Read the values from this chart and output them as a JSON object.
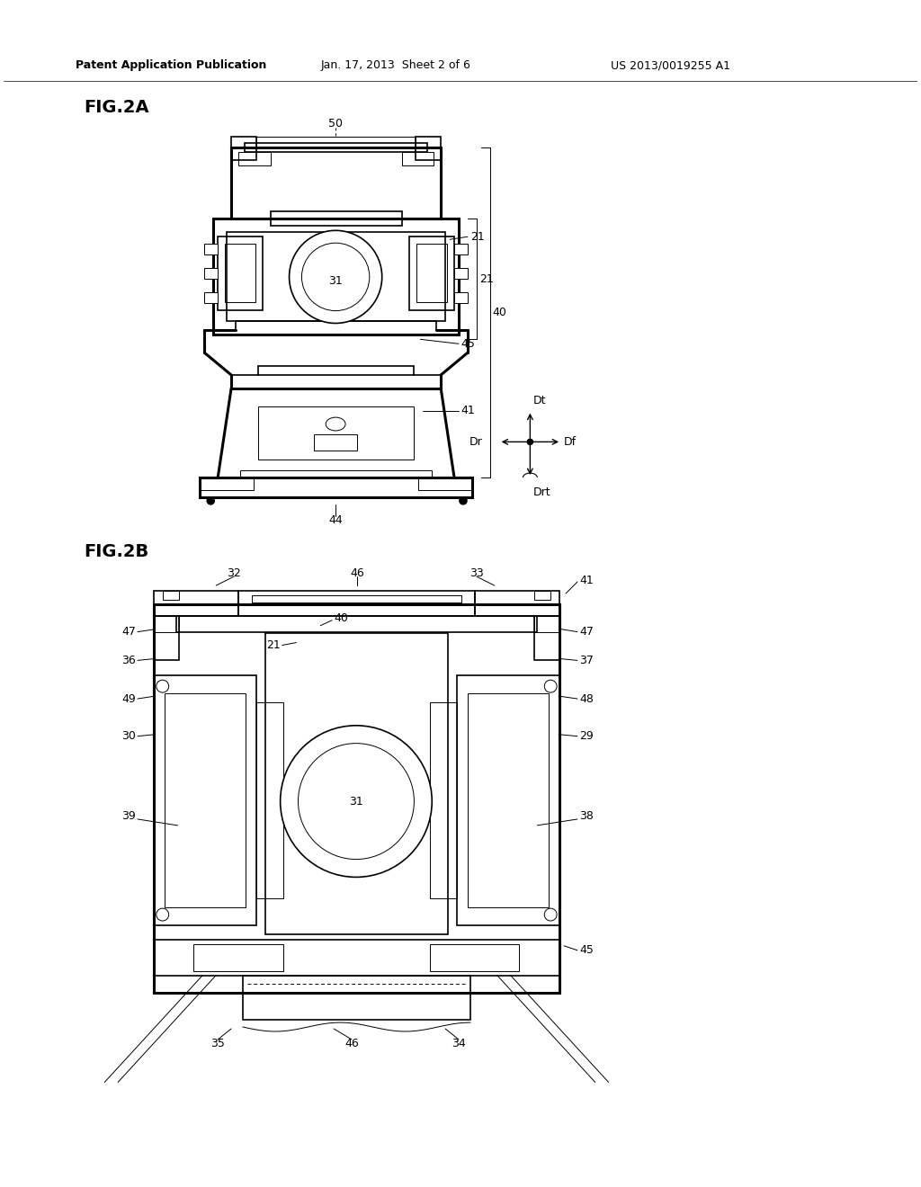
{
  "bg_color": "#ffffff",
  "fig_width": 10.24,
  "fig_height": 13.2,
  "header_text": "Patent Application Publication",
  "header_date": "Jan. 17, 2013  Sheet 2 of 6",
  "header_patent": "US 2013/0019255 A1",
  "fig2a_label": "FIG.2A",
  "fig2b_label": "FIG.2B",
  "lw": 1.2,
  "lw_thick": 2.2,
  "lw_thin": 0.7
}
